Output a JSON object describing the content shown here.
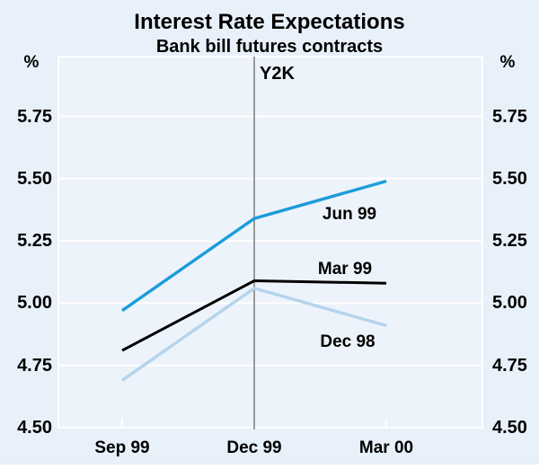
{
  "header": {
    "title": "Interest Rate Expectations",
    "subtitle": "Bank bill futures contracts"
  },
  "chart_data": {
    "type": "line",
    "title": "Interest Rate Expectations",
    "subtitle": "Bank bill futures contracts",
    "unit_left": "%",
    "unit_right": "%",
    "categories": [
      "Sep 99",
      "Dec 99",
      "Mar 00"
    ],
    "series": [
      {
        "name": "Jun 99",
        "color": "#1b9dd9",
        "values": [
          4.97,
          5.34,
          5.49
        ]
      },
      {
        "name": "Mar 99",
        "color": "#000000",
        "values": [
          4.81,
          5.09,
          5.08
        ]
      },
      {
        "name": "Dec 98",
        "color": "#b3d4ec",
        "values": [
          4.69,
          5.06,
          4.91
        ]
      }
    ],
    "ytick_labels": [
      "5.75",
      "5.50",
      "5.25",
      "5.00",
      "4.75",
      "4.50"
    ],
    "ytick_values": [
      5.75,
      5.5,
      5.25,
      5.0,
      4.75,
      4.5
    ],
    "ylim": [
      4.5,
      5.99
    ],
    "annotation": "Y2K",
    "annotation_x": "Dec 99",
    "grid": "horizontal-white",
    "legend": "inline-labels",
    "colors": {
      "background": "#e8f0fa",
      "plot_background": "#edf3fb",
      "gridline": "#ffffff",
      "annotation_line": "#8f8f8f"
    }
  }
}
